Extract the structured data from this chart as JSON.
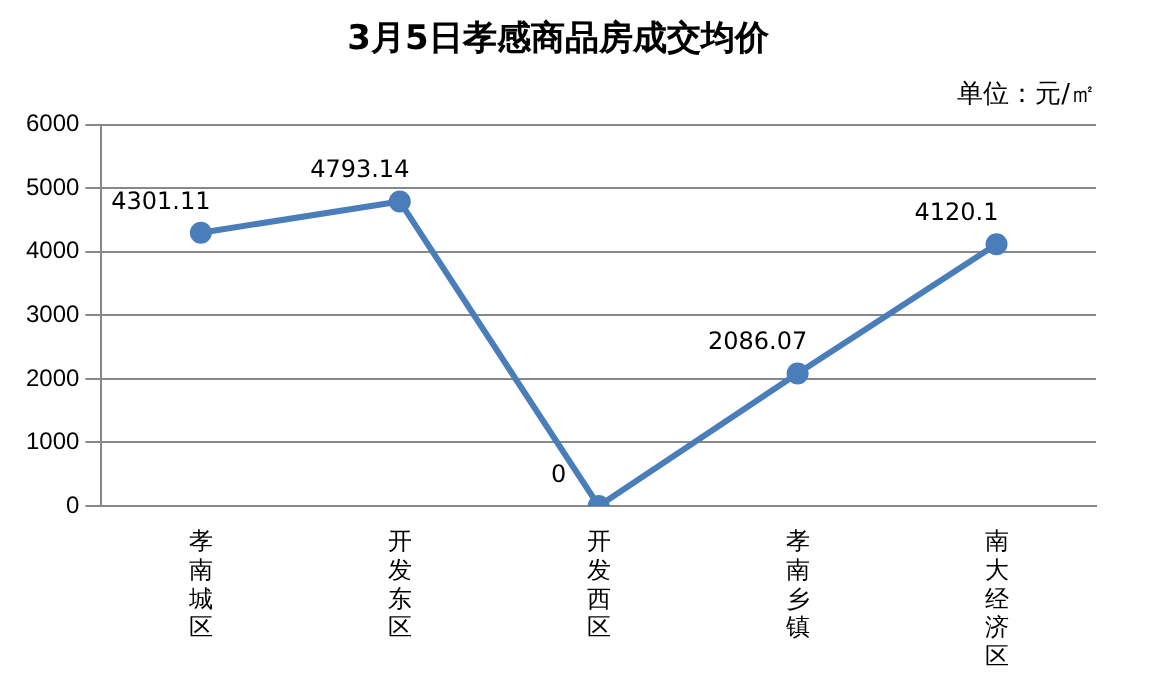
{
  "chart_data": {
    "type": "line",
    "title": "3月5日孝感商品房成交均价",
    "annotations": [
      "单位：元/㎡"
    ],
    "categories": [
      "孝南城区",
      "开发东区",
      "开发西区",
      "孝南乡镇",
      "南大经济区"
    ],
    "series": [
      {
        "color": "#4a7ebb",
        "values": [
          4301.11,
          4793.14,
          0,
          2086.07,
          4120.1
        ]
      }
    ],
    "ylim": [
      0,
      6000
    ],
    "yticks": [
      0,
      1000,
      2000,
      3000,
      4000,
      5000,
      6000
    ],
    "grid": "y",
    "legend": false,
    "marker": "circle",
    "line_style": "solid",
    "data_labels": true
  }
}
